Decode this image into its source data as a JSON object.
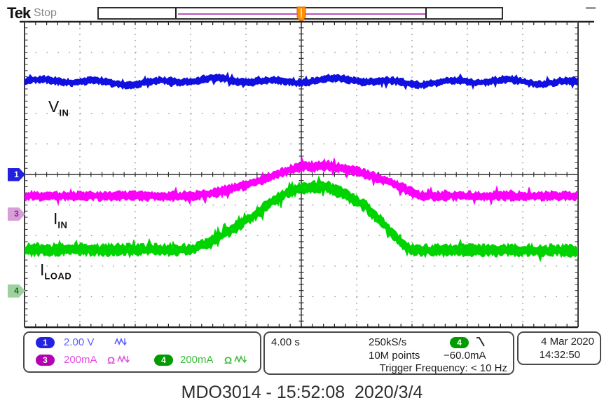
{
  "header": {
    "logo": "Tek",
    "acq_status": "Stop"
  },
  "wave_labels": [
    {
      "main": "V",
      "sub": "IN"
    },
    {
      "main": "I",
      "sub": "IN"
    },
    {
      "main": "I",
      "sub": "LOAD"
    }
  ],
  "status_bar": {
    "ch1": {
      "badge": "1",
      "scale": "2.00 V"
    },
    "ch3": {
      "badge": "3",
      "scale": "200mA",
      "impedance": "Ω"
    },
    "ch4": {
      "badge": "4",
      "scale": "200mA",
      "impedance": "Ω"
    },
    "timebase": "4.00 s",
    "sample_rate": "250kS/s",
    "record_length": "10M points",
    "trigger": {
      "source_badge": "4",
      "level": "−60.0mA",
      "frequency": "Trigger Frequency: < 10 Hz"
    },
    "datetime": {
      "date": "4 Mar 2020",
      "time": "14:32:50"
    }
  },
  "caption": "MDO3014 - 15:52:08  2020/3/4",
  "colors": {
    "ch1": "#1010e0",
    "ch3": "#fb00fb",
    "ch4": "#00d400",
    "trigger_orange": "#ff9000",
    "grid_dots": "#9a9a9a",
    "graticule_line": "#2e2e2e",
    "record_window_line": "#bb55bb"
  },
  "chart_data": {
    "type": "line",
    "title": "Tektronix MDO3014 acquisition: V_IN, I_IN, I_LOAD vs time",
    "x_axis": {
      "units": "s",
      "seconds_per_div": 4,
      "divisions": 10,
      "range": [
        -20,
        20
      ],
      "trigger_position_s": 0
    },
    "y_axis": {
      "divisions": 10
    },
    "legend_position": "none",
    "grid": "dotted 10x10 divisions, solid center crosshair",
    "series": [
      {
        "name": "V_IN",
        "channel": 1,
        "color": "#1010e0",
        "units": "V",
        "units_per_div": 2.0,
        "ground_offset_div": 0,
        "noise_pp": 0.5,
        "points": [
          [
            -20,
            6.1
          ],
          [
            20,
            6.1
          ]
        ]
      },
      {
        "name": "I_IN",
        "channel": 3,
        "color": "#fb00fb",
        "units": "mA",
        "units_per_div": 200,
        "ground_offset_div": -1.3,
        "noise_pp": 64,
        "points": [
          [
            -20,
            119
          ],
          [
            -8.1,
            119
          ],
          [
            -6.1,
            142
          ],
          [
            -4.1,
            187
          ],
          [
            -2.0,
            251
          ],
          [
            -0.8,
            292
          ],
          [
            0.5,
            315
          ],
          [
            2.0,
            315
          ],
          [
            3.5,
            292
          ],
          [
            5.1,
            251
          ],
          [
            6.6,
            201
          ],
          [
            7.6,
            160
          ],
          [
            8.6,
            121
          ],
          [
            20,
            119
          ]
        ]
      },
      {
        "name": "I_LOAD",
        "channel": 4,
        "color": "#00d400",
        "units": "mA",
        "units_per_div": 200,
        "ground_offset_div": -3.81,
        "noise_pp": 80,
        "points": [
          [
            -20,
            269
          ],
          [
            -8.0,
            269
          ],
          [
            -6.6,
            315
          ],
          [
            -5.1,
            397
          ],
          [
            -3.5,
            489
          ],
          [
            -2.0,
            589
          ],
          [
            -0.8,
            653
          ],
          [
            0.5,
            680
          ],
          [
            1.8,
            680
          ],
          [
            3.0,
            639
          ],
          [
            4.6,
            557
          ],
          [
            5.8,
            452
          ],
          [
            6.8,
            352
          ],
          [
            7.8,
            279
          ],
          [
            8.6,
            265
          ],
          [
            20,
            265
          ]
        ]
      }
    ]
  }
}
